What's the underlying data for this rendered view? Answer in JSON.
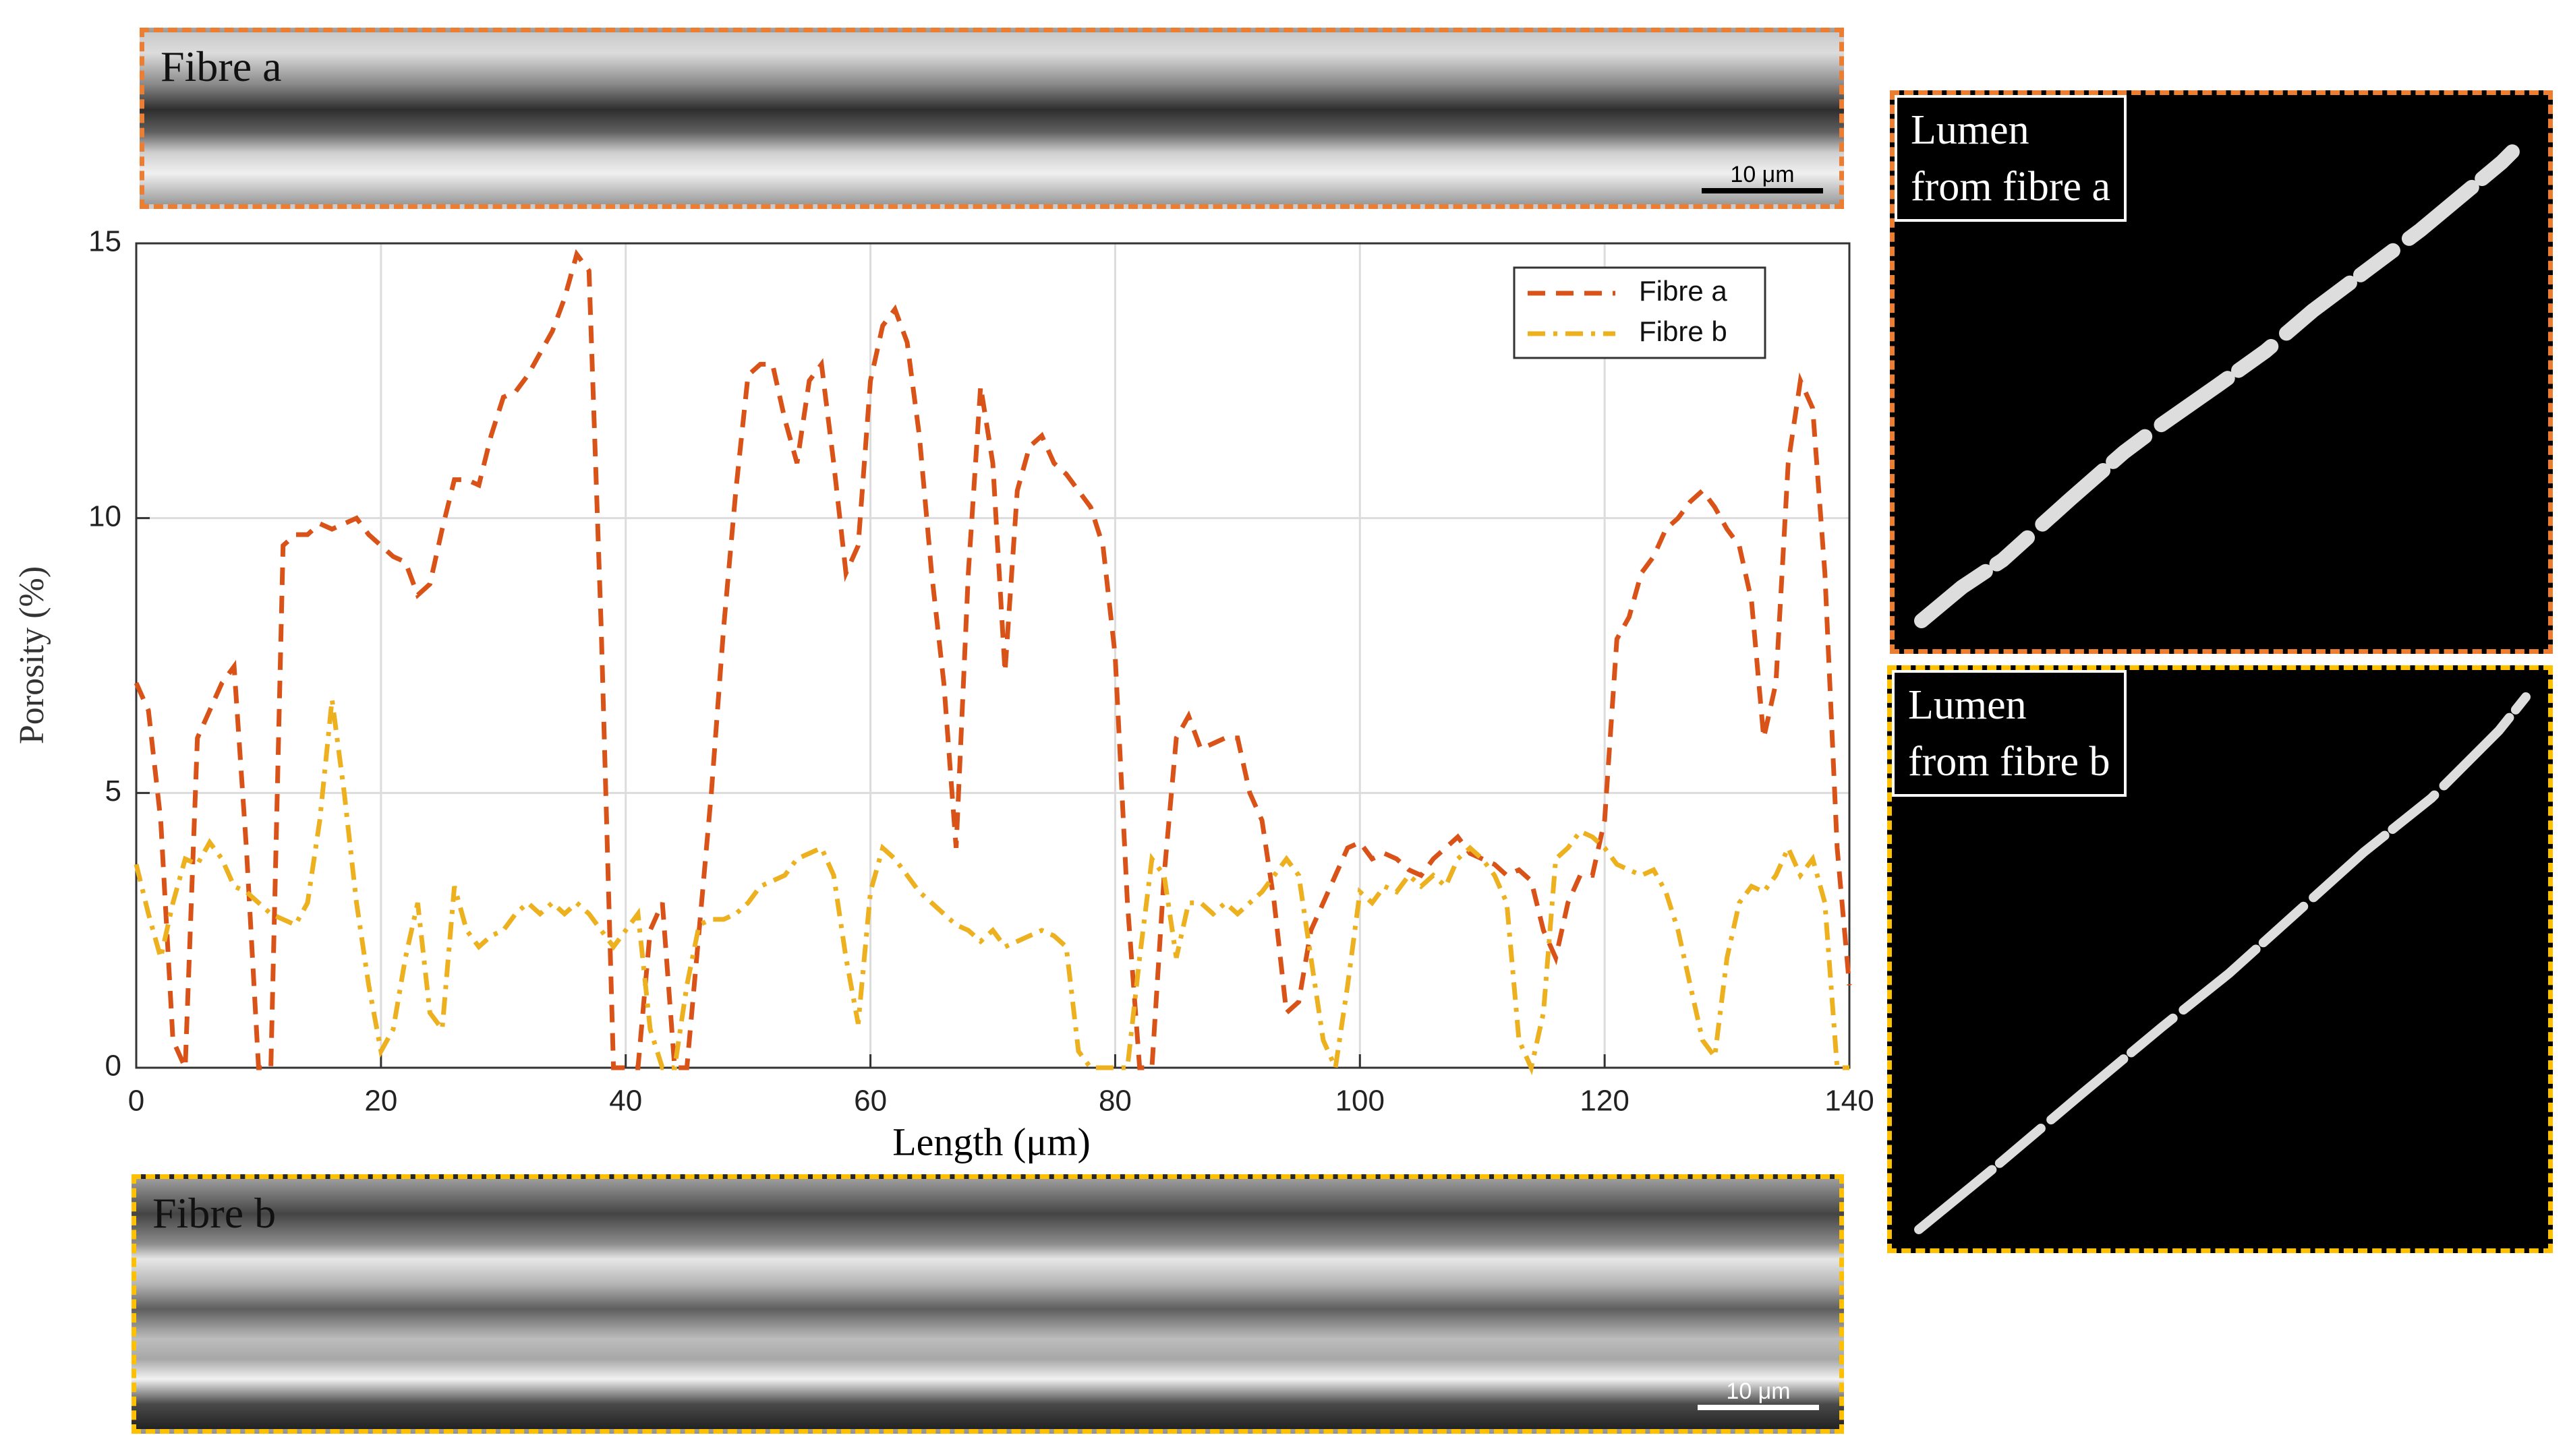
{
  "chart_data": {
    "type": "line",
    "xlabel": "Length (μm)",
    "ylabel": "Porosity (%)",
    "x": [
      0,
      1,
      2,
      3,
      4,
      5,
      6,
      7,
      8,
      9,
      10,
      11,
      12,
      13,
      14,
      15,
      16,
      17,
      18,
      19,
      20,
      21,
      22,
      23,
      24,
      25,
      26,
      27,
      28,
      29,
      30,
      31,
      32,
      33,
      34,
      35,
      36,
      37,
      38,
      39,
      40,
      41,
      42,
      43,
      44,
      45,
      46,
      47,
      48,
      49,
      50,
      51,
      52,
      53,
      54,
      55,
      56,
      57,
      58,
      59,
      60,
      61,
      62,
      63,
      64,
      65,
      66,
      67,
      68,
      69,
      70,
      71,
      72,
      73,
      74,
      75,
      76,
      77,
      78,
      79,
      80,
      81,
      82,
      83,
      84,
      85,
      86,
      87,
      88,
      89,
      90,
      91,
      92,
      93,
      94,
      95,
      96,
      97,
      98,
      99,
      100,
      101,
      102,
      103,
      104,
      105,
      106,
      107,
      108,
      109,
      110,
      111,
      112,
      113,
      114,
      115,
      116,
      117,
      118,
      119,
      120,
      121,
      122,
      123,
      124,
      125,
      126,
      127,
      128,
      129,
      130,
      131,
      132,
      133,
      134,
      135,
      136,
      137,
      138,
      139,
      140
    ],
    "series": [
      {
        "name": "Fibre a",
        "color": "#d95319",
        "dash": "dashed",
        "values": [
          7,
          6.5,
          4.5,
          0.5,
          0,
          6,
          6.5,
          7,
          7.3,
          4,
          0,
          0,
          9.5,
          9.7,
          9.7,
          9.9,
          9.8,
          9.9,
          10,
          9.7,
          9.5,
          9.3,
          9.2,
          8.6,
          8.8,
          9.8,
          10.7,
          10.7,
          10.6,
          11.5,
          12.2,
          12.3,
          12.6,
          13,
          13.4,
          14,
          14.8,
          14.5,
          8,
          0,
          0,
          0,
          2.5,
          3,
          0,
          0,
          2.5,
          5,
          8,
          10.5,
          12.6,
          12.8,
          12.8,
          11.8,
          11,
          12.5,
          12.8,
          11,
          9,
          9.5,
          12.5,
          13.5,
          13.8,
          13.2,
          11.5,
          9,
          7,
          4,
          9,
          12.4,
          11,
          7.2,
          10.5,
          11.3,
          11.5,
          11,
          10.8,
          10.5,
          10.2,
          9.5,
          7.5,
          3,
          0,
          0,
          3.5,
          6,
          6.4,
          5.8,
          5.9,
          6,
          6,
          5,
          4.5,
          3,
          1,
          1.2,
          2.5,
          3,
          3.5,
          4,
          4.1,
          3.8,
          3.9,
          3.8,
          3.6,
          3.5,
          3.8,
          4,
          4.2,
          3.9,
          3.8,
          3.7,
          3.5,
          3.6,
          3.4,
          2.5,
          2,
          3,
          3.5,
          3.5,
          4.5,
          7.8,
          8.2,
          9,
          9.3,
          9.8,
          10,
          10.3,
          10.5,
          10.2,
          9.8,
          9.5,
          8.5,
          6,
          7,
          11,
          12.5,
          12,
          9,
          4,
          1.5
        ]
      },
      {
        "name": "Fibre b",
        "color": "#edb120",
        "dash": "dashdot",
        "values": [
          3.7,
          2.8,
          2,
          3,
          3.8,
          3.7,
          4.1,
          3.8,
          3.3,
          3.2,
          3,
          2.8,
          2.7,
          2.6,
          3,
          4.5,
          6.7,
          5,
          3,
          1.5,
          0.3,
          0.7,
          2,
          3,
          1,
          0.7,
          3.3,
          2.5,
          2.2,
          2.4,
          2.5,
          2.8,
          3,
          2.8,
          3,
          2.8,
          3,
          2.8,
          2.5,
          2.2,
          2.5,
          2.8,
          0.7,
          0,
          0,
          1.5,
          2.6,
          2.7,
          2.7,
          2.8,
          3,
          3.3,
          3.4,
          3.5,
          3.8,
          3.9,
          4,
          3.5,
          2,
          0.8,
          3.2,
          4,
          3.8,
          3.5,
          3.2,
          3,
          2.8,
          2.6,
          2.5,
          2.3,
          2.5,
          2.2,
          2.3,
          2.4,
          2.5,
          2.4,
          2.2,
          0.3,
          0,
          0,
          0,
          0,
          2,
          3.8,
          3.5,
          2,
          3,
          3,
          2.8,
          3,
          2.8,
          3,
          3.2,
          3.5,
          3.8,
          3.5,
          2,
          0.5,
          0,
          1.5,
          3.2,
          3,
          3.3,
          3.2,
          3.5,
          3.3,
          3.5,
          3.3,
          3.8,
          4,
          3.8,
          3.5,
          3,
          0.5,
          0,
          1,
          3.8,
          4,
          4.3,
          4.2,
          4,
          3.7,
          3.6,
          3.5,
          3.6,
          3.2,
          2.5,
          1.5,
          0.5,
          0.2,
          2,
          3,
          3.3,
          3.2,
          3.5,
          4,
          3.5,
          3.8,
          3,
          0,
          0
        ]
      }
    ],
    "xlim": [
      0,
      140
    ],
    "xticks": [
      0,
      20,
      40,
      60,
      80,
      100,
      120,
      140
    ],
    "ylim": [
      0,
      15
    ],
    "yticks": [
      0,
      5,
      10,
      15
    ],
    "grid": true,
    "legend": "northeast"
  },
  "micrographs": [
    {
      "label": "Fibre a",
      "scale_bar": "10 μm"
    },
    {
      "label": "Fibre b",
      "scale_bar": "10 μm"
    }
  ],
  "lumen": [
    {
      "lines": [
        "Lumen",
        "from fibre a"
      ]
    },
    {
      "lines": [
        "Lumen",
        "from fibre b"
      ]
    }
  ]
}
